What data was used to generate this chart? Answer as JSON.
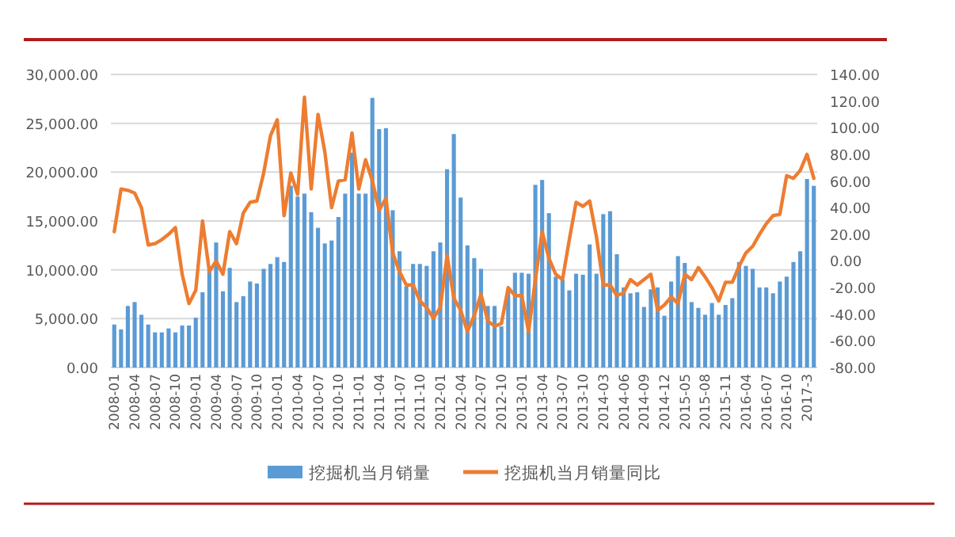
{
  "chart_data": {
    "type": "bar",
    "categories": [
      "2008-01",
      null,
      null,
      "2008-04",
      null,
      null,
      "2008-07",
      null,
      null,
      "2008-10",
      null,
      null,
      "2009-01",
      null,
      null,
      "2009-04",
      null,
      null,
      "2009-07",
      null,
      null,
      "2009-10",
      null,
      null,
      "2010-01",
      null,
      null,
      "2010-04",
      null,
      null,
      "2010-07",
      null,
      null,
      "2010-10",
      null,
      null,
      "2011-01",
      null,
      null,
      "2011-04",
      null,
      null,
      "2011-07",
      null,
      null,
      "2011-10",
      null,
      null,
      "2012-01",
      null,
      null,
      "2012-04",
      null,
      null,
      "2012-07",
      null,
      null,
      "2012-10",
      null,
      null,
      "2013-01",
      null,
      null,
      "2013-04",
      null,
      null,
      "2013-07",
      null,
      null,
      "2013-10",
      null,
      null,
      "2014-03",
      null,
      null,
      "2014-06",
      null,
      null,
      "2014-09",
      null,
      null,
      "2014-12",
      null,
      null,
      "2015-05",
      null,
      null,
      "2015-08",
      null,
      null,
      "2015-11",
      null,
      null,
      "2016-04",
      null,
      null,
      "2016-07",
      null,
      null,
      "2016-10",
      null,
      null,
      "2017-3",
      null
    ],
    "series": [
      {
        "name": "挖掘机当月销量",
        "color": "#5b9bd5",
        "values": [
          4400,
          3900,
          6300,
          6700,
          5400,
          4400,
          3600,
          3600,
          4000,
          3600,
          4300,
          4300,
          5100,
          7700,
          9900,
          12800,
          7800,
          10200,
          6700,
          7300,
          8800,
          8600,
          10100,
          10600,
          11300,
          10800,
          18600,
          17500,
          17800,
          15900,
          14300,
          12700,
          13000,
          15400,
          17800,
          22000,
          17800,
          17800,
          27600,
          24400,
          24500,
          16100,
          11900,
          8300,
          10600,
          10600,
          10400,
          11900,
          12800,
          20300,
          23900,
          17400,
          12500,
          11200,
          10100,
          6300,
          6300,
          4200,
          8000,
          9700,
          9700,
          9600,
          18700,
          19200,
          15800,
          9300,
          9000,
          7900,
          9600,
          9500,
          12600,
          9600,
          15700,
          16000,
          11600,
          8200,
          7600,
          7700,
          6200,
          8000,
          8200,
          5300,
          8800,
          11400,
          10700,
          6700,
          6100,
          5400,
          6600,
          5400,
          6400,
          7100,
          10800,
          10400,
          10100,
          8200,
          8200,
          7600,
          8800,
          9300,
          10800,
          11900,
          19300,
          18600
        ]
      },
      {
        "name": "挖掘机当月销量同比",
        "type": "line",
        "axis": "y2",
        "color": "#ed7d31",
        "values": [
          22,
          54,
          53,
          51,
          40,
          12,
          13,
          16,
          20,
          25,
          -10,
          -32,
          -22,
          30,
          -8,
          0,
          -10,
          22,
          13,
          36,
          44,
          45,
          66,
          94,
          106,
          34,
          66,
          50,
          123,
          54,
          110,
          82,
          40,
          60,
          61,
          96,
          54,
          76,
          60,
          38,
          47,
          6,
          -8,
          -18,
          -18,
          -30,
          -35,
          -43,
          -35,
          4,
          -28,
          -37,
          -53,
          -41,
          -25,
          -45,
          -49,
          -47,
          -20,
          -26,
          -26,
          -53,
          -14,
          22,
          2,
          -10,
          -14,
          16,
          44,
          41,
          45,
          18,
          -18,
          -18,
          -26,
          -24,
          -14,
          -18,
          -14,
          -10,
          -37,
          -33,
          -27,
          -32,
          -10,
          -14,
          -5,
          -12,
          -20,
          -30,
          -16,
          -16,
          -4,
          6,
          11,
          20,
          28,
          34,
          35,
          64,
          62,
          68,
          80,
          62
        ]
      }
    ],
    "ylim": [
      0,
      30000
    ],
    "yticks": [
      {
        "value": 0,
        "label": "0.00"
      },
      {
        "value": 5000,
        "label": "5,000.00"
      },
      {
        "value": 10000,
        "label": "10,000.00"
      },
      {
        "value": 15000,
        "label": "15,000.00"
      },
      {
        "value": 20000,
        "label": "20,000.00"
      },
      {
        "value": 25000,
        "label": "25,000.00"
      },
      {
        "value": 30000,
        "label": "30,000.00"
      }
    ],
    "y2lim": [
      -80,
      140
    ],
    "y2ticks": [
      {
        "value": -80,
        "label": "-80.00"
      },
      {
        "value": -60,
        "label": "-60.00"
      },
      {
        "value": -40,
        "label": "-40.00"
      },
      {
        "value": -20,
        "label": "-20.00"
      },
      {
        "value": 0,
        "label": "0.00"
      },
      {
        "value": 20,
        "label": "20.00"
      },
      {
        "value": 40,
        "label": "40.00"
      },
      {
        "value": 60,
        "label": "60.00"
      },
      {
        "value": 80,
        "label": "80.00"
      },
      {
        "value": 100,
        "label": "100.00"
      },
      {
        "value": 120,
        "label": "120.00"
      },
      {
        "value": 140,
        "label": "140.00"
      }
    ],
    "grid": "y",
    "legend": "bottom"
  }
}
